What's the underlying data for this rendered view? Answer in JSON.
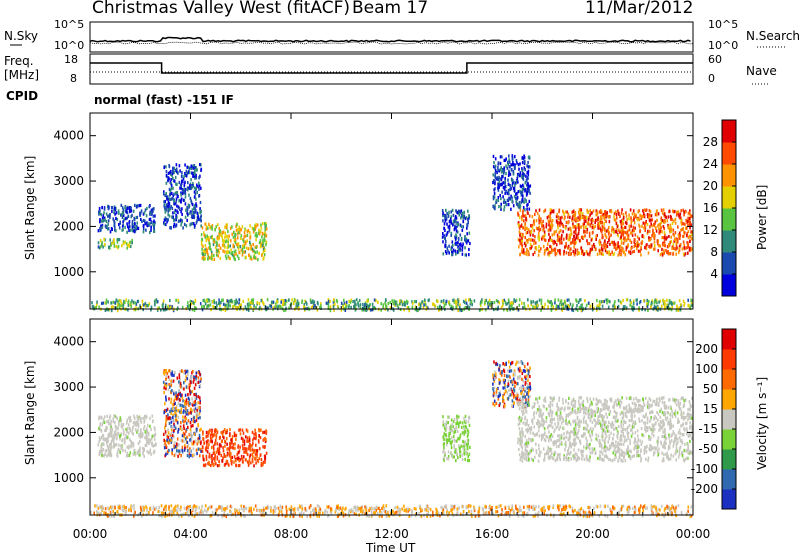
{
  "header": {
    "station": "Christmas Valley West (fitACF)",
    "beam": "Beam 17",
    "date": "11/Mar/2012"
  },
  "noise_panel": {
    "left_label": "N.Sky",
    "right_label": "N.Search",
    "ticks": [
      "10^5",
      "10^0"
    ]
  },
  "freq_panel": {
    "left_label_1": "Freq.",
    "left_label_2": "[MHz]",
    "left_ticks": [
      "18",
      "8"
    ],
    "right_label": "Nave",
    "right_ticks": [
      "60",
      "0"
    ]
  },
  "cpid_panel": {
    "label": "CPID",
    "text": "normal (fast) -151 IF"
  },
  "chart_data": [
    {
      "type": "heatmap",
      "panel": "power",
      "ylabel": "Slant Range [km]",
      "xlabel": "Time UT",
      "x_ticks": [
        "00:00",
        "04:00",
        "08:00",
        "12:00",
        "16:00",
        "20:00",
        "00:00"
      ],
      "y_ticks": [
        "1000",
        "2000",
        "3000",
        "4000"
      ],
      "x_range_hours": [
        0,
        24
      ],
      "y_range_km": [
        180,
        4500
      ],
      "colorbar": {
        "label": "Power [dB]",
        "ticks": [
          "4",
          "8",
          "12",
          "16",
          "20",
          "24",
          "28"
        ],
        "colors": [
          "#0000dd",
          "#1a4ab0",
          "#2f8a7a",
          "#58c440",
          "#e4d000",
          "#ff9200",
          "#ff4a00",
          "#e00000"
        ]
      },
      "features": [
        {
          "t0": 0.3,
          "t1": 1.7,
          "r0": 1550,
          "r1": 1750,
          "level": 3
        },
        {
          "t0": 0.3,
          "t1": 2.6,
          "r0": 1900,
          "r1": 2500,
          "level": 1
        },
        {
          "t0": 2.9,
          "t1": 4.4,
          "r0": 2000,
          "r1": 3400,
          "level": 1
        },
        {
          "t0": 4.4,
          "t1": 7.0,
          "r0": 1300,
          "r1": 2100,
          "level": 4
        },
        {
          "t0": 0.0,
          "t1": 24.0,
          "r0": 180,
          "r1": 420,
          "level": 3
        },
        {
          "t0": 14.0,
          "t1": 15.1,
          "r0": 1400,
          "r1": 2400,
          "level": 1
        },
        {
          "t0": 16.0,
          "t1": 17.5,
          "r0": 2400,
          "r1": 3600,
          "level": 1
        },
        {
          "t0": 17.0,
          "t1": 24.0,
          "r0": 1400,
          "r1": 2400,
          "level": 6
        }
      ]
    },
    {
      "type": "heatmap",
      "panel": "velocity",
      "ylabel": "Slant Range [km]",
      "xlabel": "Time UT",
      "x_ticks": [
        "00:00",
        "04:00",
        "08:00",
        "12:00",
        "16:00",
        "20:00",
        "00:00"
      ],
      "y_ticks": [
        "1000",
        "2000",
        "3000",
        "4000"
      ],
      "x_range_hours": [
        0,
        24
      ],
      "y_range_km": [
        180,
        4500
      ],
      "colorbar": {
        "label": "Velocity [m s⁻¹]",
        "ticks": [
          "200",
          "100",
          "50",
          "15",
          "-15",
          "-50",
          "-100",
          "-200"
        ],
        "colors": [
          "#1b2fc0",
          "#2f6ab0",
          "#2f9a4a",
          "#79d236",
          "#c9c8c0",
          "#ffa600",
          "#ff6a00",
          "#ff3a00",
          "#e00000"
        ]
      },
      "features": [
        {
          "t0": 0.3,
          "t1": 2.6,
          "r0": 1500,
          "r1": 2400,
          "class": "ground"
        },
        {
          "t0": 2.9,
          "t1": 4.4,
          "r0": 1500,
          "r1": 3400,
          "class": "mixed"
        },
        {
          "t0": 4.4,
          "t1": 7.0,
          "r0": 1300,
          "r1": 2100,
          "class": "away"
        },
        {
          "t0": 0.0,
          "t1": 24.0,
          "r0": 180,
          "r1": 420,
          "class": "ground_mixed"
        },
        {
          "t0": 14.0,
          "t1": 15.1,
          "r0": 1400,
          "r1": 2400,
          "class": "toward"
        },
        {
          "t0": 16.0,
          "t1": 17.5,
          "r0": 2600,
          "r1": 3600,
          "class": "mixed"
        },
        {
          "t0": 17.0,
          "t1": 24.0,
          "r0": 1400,
          "r1": 2800,
          "class": "ground"
        }
      ]
    }
  ]
}
